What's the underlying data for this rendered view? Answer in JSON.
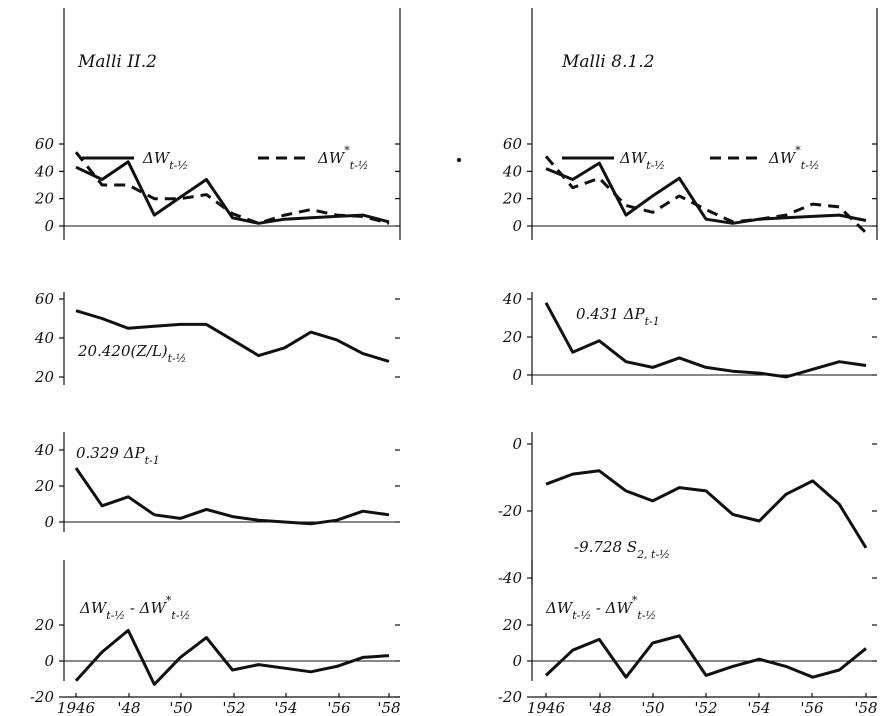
{
  "chart_data": [
    {
      "type": "line",
      "title": "Malli II.2",
      "x": [
        1946,
        1947,
        1948,
        1949,
        1950,
        1951,
        1952,
        1953,
        1954,
        1955,
        1956,
        1957,
        1958
      ],
      "ylim": [
        0,
        60
      ],
      "yticks": [
        "0",
        "20",
        "40",
        "60"
      ],
      "legend": {
        "placement": "top",
        "entries": [
          {
            "main": "ΔW",
            "sup": "",
            "sub": "t-½",
            "style": "solid"
          },
          {
            "main": "ΔW",
            "sup": "*",
            "sub": "t-½",
            "style": "dashed"
          }
        ]
      },
      "series": [
        {
          "name": "ΔWt-½",
          "style": "solid",
          "values": [
            43,
            34,
            47,
            8,
            21,
            34,
            6,
            2,
            5,
            6,
            7,
            8,
            3
          ]
        },
        {
          "name": "ΔW*t-½",
          "style": "dashed",
          "values": [
            54,
            30,
            30,
            20,
            20,
            23,
            9,
            2,
            8,
            12,
            8,
            7,
            2
          ]
        }
      ]
    },
    {
      "type": "line",
      "title": "Malli 8.1.2",
      "x": [
        1946,
        1947,
        1948,
        1949,
        1950,
        1951,
        1952,
        1953,
        1954,
        1955,
        1956,
        1957,
        1958
      ],
      "ylim": [
        0,
        60
      ],
      "yticks": [
        "0",
        "20",
        "40",
        "60"
      ],
      "legend": {
        "placement": "top",
        "entries": [
          {
            "main": "ΔW",
            "sup": "",
            "sub": "t-½",
            "style": "solid"
          },
          {
            "main": "ΔW",
            "sup": "*",
            "sub": "t-½",
            "style": "dashed"
          }
        ]
      },
      "series": [
        {
          "name": "ΔWt-½",
          "style": "solid",
          "values": [
            42,
            34,
            46,
            8,
            22,
            35,
            5,
            2,
            5,
            6,
            7,
            8,
            4
          ]
        },
        {
          "name": "ΔW*t-½",
          "style": "dashed",
          "values": [
            51,
            28,
            35,
            15,
            10,
            22,
            12,
            3,
            5,
            8,
            16,
            14,
            -5
          ]
        }
      ]
    },
    {
      "type": "line",
      "ylim": [
        20,
        60
      ],
      "yticks": [
        "20",
        "40",
        "60"
      ],
      "label": {
        "main": "20.420(Z/L)",
        "sub": "t-½"
      },
      "x": [
        1946,
        1947,
        1948,
        1949,
        1950,
        1951,
        1952,
        1953,
        1954,
        1955,
        1956,
        1957,
        1958
      ],
      "series": [
        {
          "style": "solid",
          "values": [
            54,
            50,
            45,
            46,
            47,
            47,
            39,
            31,
            35,
            43,
            39,
            32,
            28
          ]
        }
      ]
    },
    {
      "type": "line",
      "ylim": [
        0,
        40
      ],
      "yticks": [
        "0",
        "20",
        "40"
      ],
      "label": {
        "main": "0.431 ΔP",
        "sub": "t-1"
      },
      "x": [
        1946,
        1947,
        1948,
        1949,
        1950,
        1951,
        1952,
        1953,
        1954,
        1955,
        1956,
        1957,
        1958
      ],
      "series": [
        {
          "style": "solid",
          "values": [
            38,
            12,
            18,
            7,
            4,
            9,
            4,
            2,
            1,
            -1,
            3,
            7,
            5
          ]
        }
      ]
    },
    {
      "type": "line",
      "ylim": [
        0,
        40
      ],
      "yticks": [
        "0",
        "20",
        "40"
      ],
      "label": {
        "main": "0.329 ΔP",
        "sub": "t-1"
      },
      "x": [
        1946,
        1947,
        1948,
        1949,
        1950,
        1951,
        1952,
        1953,
        1954,
        1955,
        1956,
        1957,
        1958
      ],
      "series": [
        {
          "style": "solid",
          "values": [
            30,
            9,
            14,
            4,
            2,
            7,
            3,
            1,
            0,
            -1,
            1,
            6,
            4
          ]
        }
      ]
    },
    {
      "type": "line",
      "ylim": [
        -40,
        0
      ],
      "yticks": [
        "-40",
        "-20",
        "0"
      ],
      "label": {
        "main": "-9.728 S",
        "sub": "2, t-½"
      },
      "x": [
        1946,
        1947,
        1948,
        1949,
        1950,
        1951,
        1952,
        1953,
        1954,
        1955,
        1956,
        1957,
        1958
      ],
      "series": [
        {
          "style": "solid",
          "values": [
            -12,
            -9,
            -8,
            -14,
            -17,
            -13,
            -14,
            -21,
            -23,
            -15,
            -11,
            -18,
            -31
          ]
        }
      ]
    },
    {
      "type": "line",
      "ylim": [
        -20,
        20
      ],
      "yticks": [
        "-20",
        "0",
        "20"
      ],
      "xticks": [
        "1946",
        "'48",
        "'50",
        "'52",
        "'54",
        "'56",
        "'58"
      ],
      "label": {
        "main": "ΔW",
        "sub": "t-½",
        "main2": " - ΔW",
        "sup2": "*",
        "sub2": "t-½"
      },
      "x": [
        1946,
        1947,
        1948,
        1949,
        1950,
        1951,
        1952,
        1953,
        1954,
        1955,
        1956,
        1957,
        1958
      ],
      "series": [
        {
          "style": "solid",
          "values": [
            -11,
            5,
            17,
            -13,
            2,
            13,
            -5,
            -2,
            -4,
            -6,
            -3,
            2,
            3
          ]
        }
      ]
    },
    {
      "type": "line",
      "ylim": [
        -20,
        20
      ],
      "yticks": [
        "-20",
        "0",
        "20"
      ],
      "xticks": [
        "1946",
        "'48",
        "'50",
        "'52",
        "'54",
        "'56",
        "'58"
      ],
      "label": {
        "main": "ΔW",
        "sub": "t-½",
        "main2": " - ΔW",
        "sup2": "*",
        "sub2": "t-½"
      },
      "x": [
        1946,
        1947,
        1948,
        1949,
        1950,
        1951,
        1952,
        1953,
        1954,
        1955,
        1956,
        1957,
        1958
      ],
      "series": [
        {
          "style": "solid",
          "values": [
            -8,
            6,
            12,
            -9,
            10,
            14,
            -8,
            -3,
            1,
            -3,
            -9,
            -5,
            7
          ]
        }
      ]
    }
  ]
}
